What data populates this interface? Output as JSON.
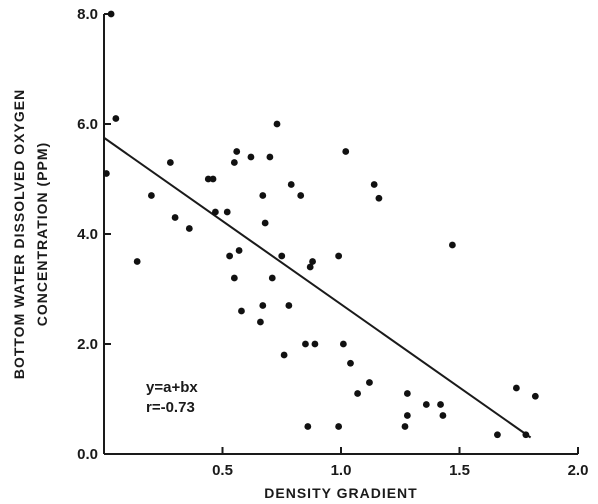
{
  "chart_data": {
    "type": "scatter",
    "xlabel": "DENSITY GRADIENT",
    "ylabel_lines": [
      "BOTTOM WATER DISSOLVED OXYGEN",
      "CONCENTRATION (PPM)"
    ],
    "xlim": [
      0,
      2.0
    ],
    "ylim": [
      0,
      8.0
    ],
    "x_ticks": [
      {
        "value": 0.5,
        "label": "0.5"
      },
      {
        "value": 1.0,
        "label": "1.0"
      },
      {
        "value": 1.5,
        "label": "1.5"
      },
      {
        "value": 2.0,
        "label": "2.0"
      }
    ],
    "y_ticks": [
      {
        "value": 0,
        "label": "0.0"
      },
      {
        "value": 2,
        "label": "2.0"
      },
      {
        "value": 4,
        "label": "4.0"
      },
      {
        "value": 6,
        "label": "6.0"
      },
      {
        "value": 8,
        "label": "8.0"
      }
    ],
    "grid": false,
    "legend": null,
    "annotation_lines": [
      "y=a+bx",
      "r=-0.73"
    ],
    "regression_line": {
      "x": [
        0.0,
        1.8
      ],
      "y": [
        5.75,
        0.3
      ]
    },
    "points": {
      "x": [
        0.03,
        0.05,
        0.01,
        0.2,
        0.14,
        0.28,
        0.3,
        0.36,
        0.44,
        0.46,
        0.47,
        0.52,
        0.55,
        0.56,
        0.57,
        0.53,
        0.55,
        0.58,
        0.62,
        0.67,
        0.68,
        0.67,
        0.7,
        0.73,
        0.71,
        0.75,
        0.78,
        0.66,
        0.79,
        0.83,
        0.87,
        0.88,
        0.89,
        0.85,
        0.76,
        0.99,
        1.02,
        1.01,
        1.04,
        1.07,
        1.12,
        1.14,
        1.16,
        1.28,
        1.28,
        1.27,
        1.36,
        1.42,
        1.43,
        1.47,
        1.66,
        1.74,
        1.78,
        1.82,
        0.86,
        0.99
      ],
      "y": [
        8.0,
        6.1,
        5.1,
        4.7,
        3.5,
        5.3,
        4.3,
        4.1,
        5.0,
        5.0,
        4.4,
        4.4,
        5.3,
        5.5,
        3.7,
        3.6,
        3.2,
        2.6,
        5.4,
        4.7,
        4.2,
        2.7,
        5.4,
        6.0,
        3.2,
        3.6,
        2.7,
        2.4,
        4.9,
        4.7,
        3.4,
        3.5,
        2.0,
        2.0,
        1.8,
        3.6,
        5.5,
        2.0,
        1.65,
        1.1,
        1.3,
        4.9,
        4.65,
        1.1,
        0.7,
        0.5,
        0.9,
        0.9,
        0.7,
        3.8,
        0.35,
        1.2,
        0.35,
        1.05,
        0.5,
        0.5
      ]
    }
  }
}
